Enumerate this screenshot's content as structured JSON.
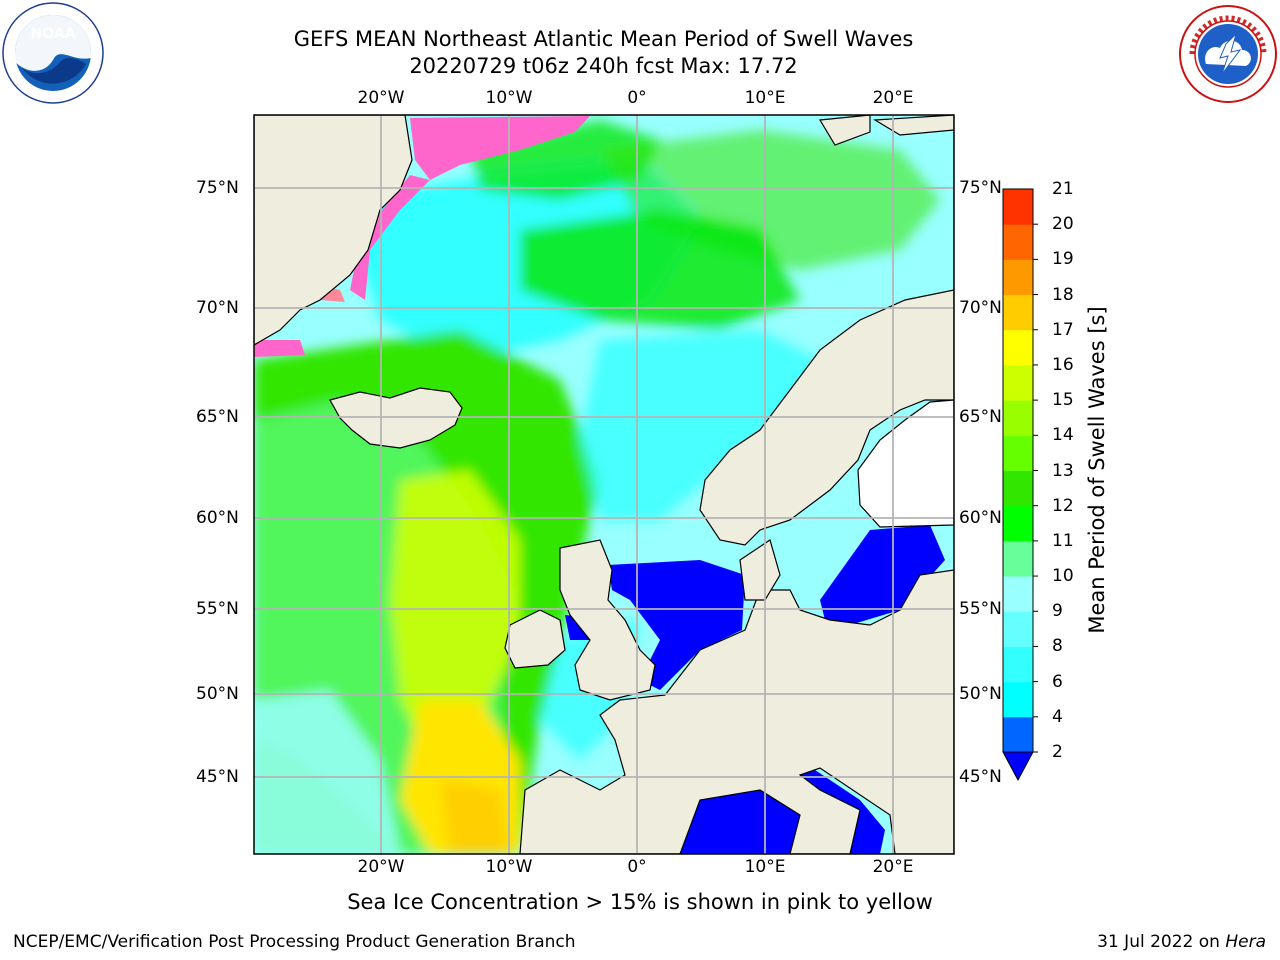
{
  "title": {
    "line1": "GEFS MEAN Northeast Atlantic Mean Period of Swell Waves",
    "line2": "20220729 t06z 240h fcst   Max: 17.72"
  },
  "logos": {
    "left": "NOAA",
    "left_ring": "NATIONAL OCEANIC AND ATMOSPHERIC ADMINISTRATION · U.S. DEPARTMENT OF COMMERCE",
    "right_ring": "NATIONAL WEATHER SERVICE"
  },
  "map": {
    "lon_labels": [
      "20°W",
      "10°W",
      "0°",
      "10°E",
      "20°E"
    ],
    "lat_labels_left": [
      "75°N",
      "70°N",
      "65°N",
      "60°N",
      "55°N",
      "50°N",
      "45°N"
    ],
    "lat_labels_right": [
      "75°N",
      "70°N",
      "65°N",
      "60°N",
      "55°N",
      "50°N",
      "45°N"
    ],
    "colors": {
      "land": "#efedde",
      "grid": "#b4b4b4",
      "ocean_swell_8_9": "#99ffff",
      "ocean_swell_6_8": "#33ffff",
      "ocean_swell_9_10": "#66ff99",
      "ocean_swell_10_11": "#00e600",
      "ocean_swell_12_14": "#ccff00",
      "ocean_swell_15_16": "#ffe600",
      "ocean_swell_2_4": "#0000ff",
      "sea_ice_pink": "#ff66cc"
    }
  },
  "colorbar": {
    "title": "Mean Period of Swell Waves [s]",
    "ticks": [
      "2",
      "4",
      "6",
      "8",
      "9",
      "10",
      "11",
      "12",
      "13",
      "14",
      "15",
      "16",
      "17",
      "18",
      "19",
      "20",
      "21"
    ],
    "colors": [
      "#0066ff",
      "#00ffff",
      "#33ffff",
      "#66ffff",
      "#99ffff",
      "#66ff99",
      "#00ff00",
      "#33e600",
      "#66ff00",
      "#99ff00",
      "#ccff00",
      "#ffff00",
      "#ffcc00",
      "#ff9900",
      "#ff6600",
      "#ff3300",
      "#ff0000"
    ],
    "under_color": "#0000ff"
  },
  "note": "Sea Ice Concentration > 15% is shown in pink to yellow",
  "footer": {
    "left": "NCEP/EMC/Verification Post Processing Product Generation Branch",
    "right_prefix": "31 Jul 2022 on ",
    "right_host": "Hera"
  }
}
